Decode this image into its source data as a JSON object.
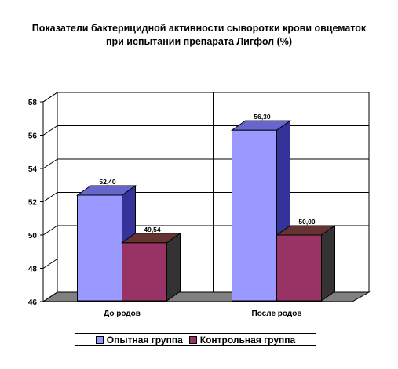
{
  "chart_data": {
    "type": "bar",
    "title": "Показатели бактерицидной активности сыворотки крови овцематок при испытании препарата Лигфол (%)",
    "categories": [
      "До родов",
      "После родов"
    ],
    "series": [
      {
        "name": "Опытная группа",
        "values": [
          52.4,
          56.3
        ],
        "labels": [
          "52,40",
          "56,30"
        ],
        "color": "#9999ff",
        "side_color": "#333399",
        "top_color": "#6666cc"
      },
      {
        "name": "Контрольная группа",
        "values": [
          49.54,
          50.0
        ],
        "labels": [
          "49,54",
          "50,00"
        ],
        "color": "#993366",
        "side_color": "#333333",
        "top_color": "#663333"
      }
    ],
    "ylim": [
      46,
      58
    ],
    "yticks": [
      "46",
      "48",
      "50",
      "52",
      "54",
      "56",
      "58"
    ],
    "xlabel": "",
    "ylabel": "",
    "grid": true,
    "three_d": true,
    "legend_position": "bottom"
  }
}
